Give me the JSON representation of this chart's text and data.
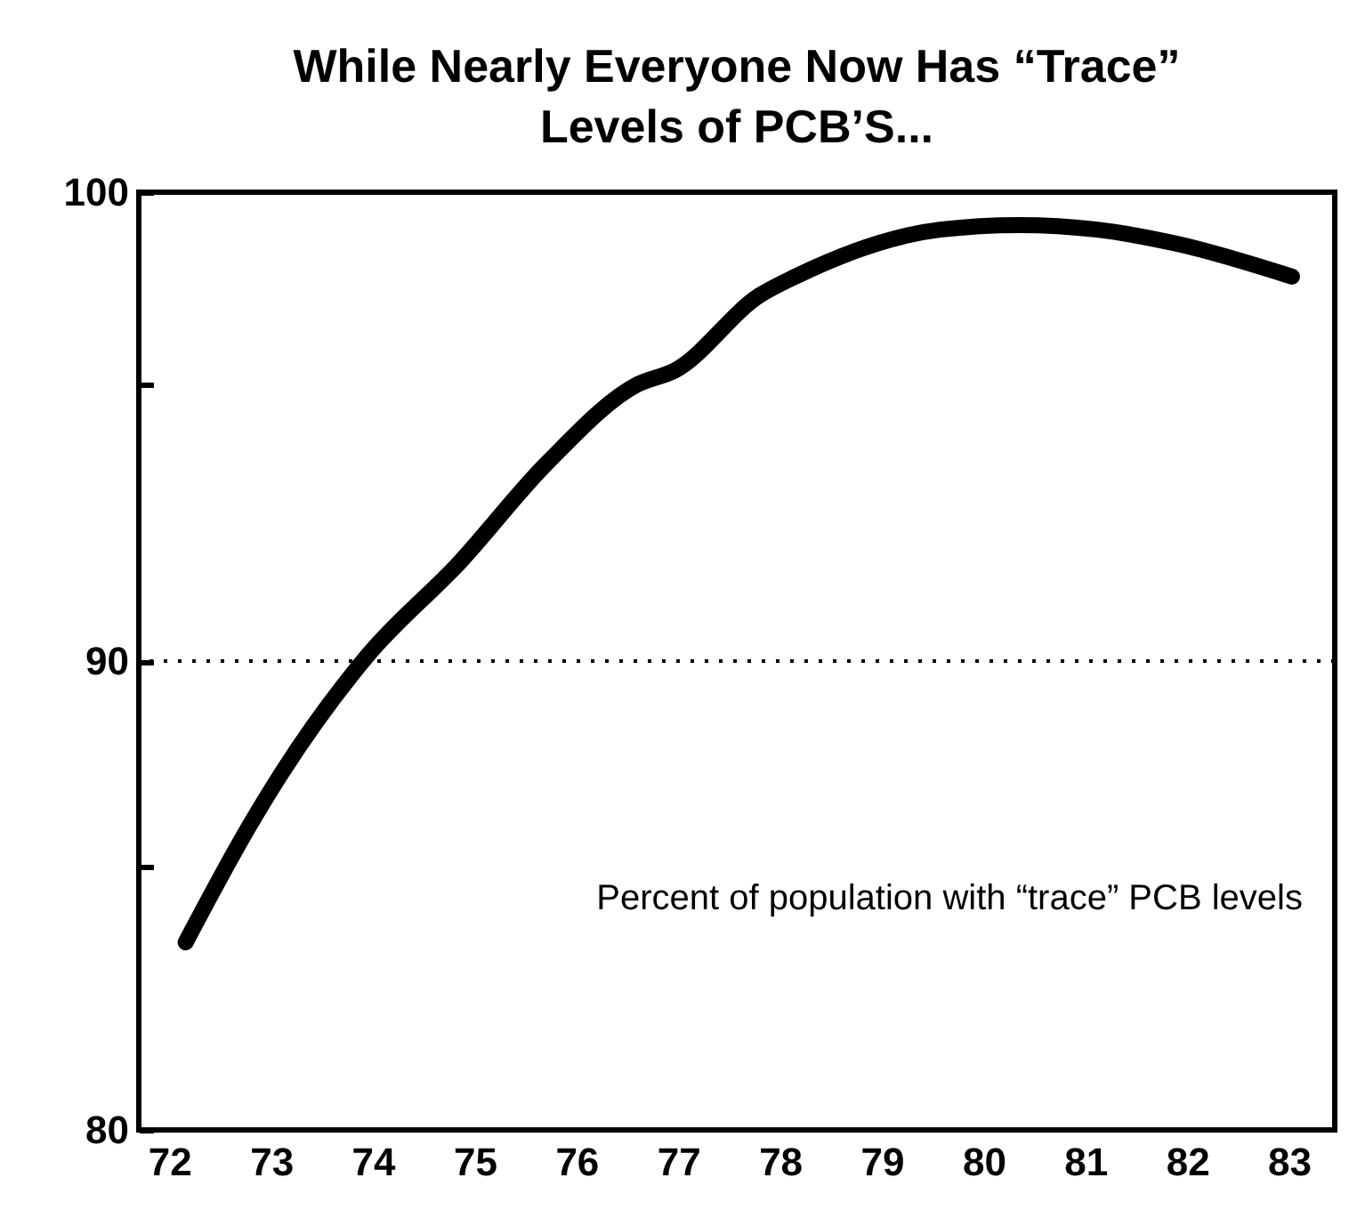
{
  "chart_data": {
    "type": "line",
    "title": "While Nearly Everyone Now Has “Trace” Levels of PCB’S...",
    "x": [
      72.16,
      72.79,
      73.1,
      73.94,
      74.85,
      75.7,
      76.6,
      76.97,
      77.8,
      78.15,
      79.57,
      80.35,
      81.12,
      81.9,
      83.03
    ],
    "series": [
      {
        "color": "#000000",
        "values": [
          84.0,
          86.5,
          87.6,
          90.1,
          92.1,
          94.2,
          95.9,
          96.2,
          97.8,
          98.2,
          99.2,
          99.3,
          99.2,
          98.9,
          98.2
        ]
      }
    ],
    "xlim": [
      71.7,
      83.45
    ],
    "xticks": [
      72,
      73,
      74,
      75,
      76,
      77,
      78,
      79,
      80,
      81,
      82,
      83
    ],
    "ylim": [
      80,
      100
    ],
    "yticks": [
      80,
      {
        "value": 85.6,
        "label": null
      },
      90,
      {
        "value": 95.9,
        "label": null
      },
      100
    ],
    "ref_lines": [
      {
        "axis": "y",
        "value": 90,
        "line_style": "dotted"
      }
    ],
    "annotations": [
      "Percent of population with “trace” PCB levels"
    ]
  }
}
